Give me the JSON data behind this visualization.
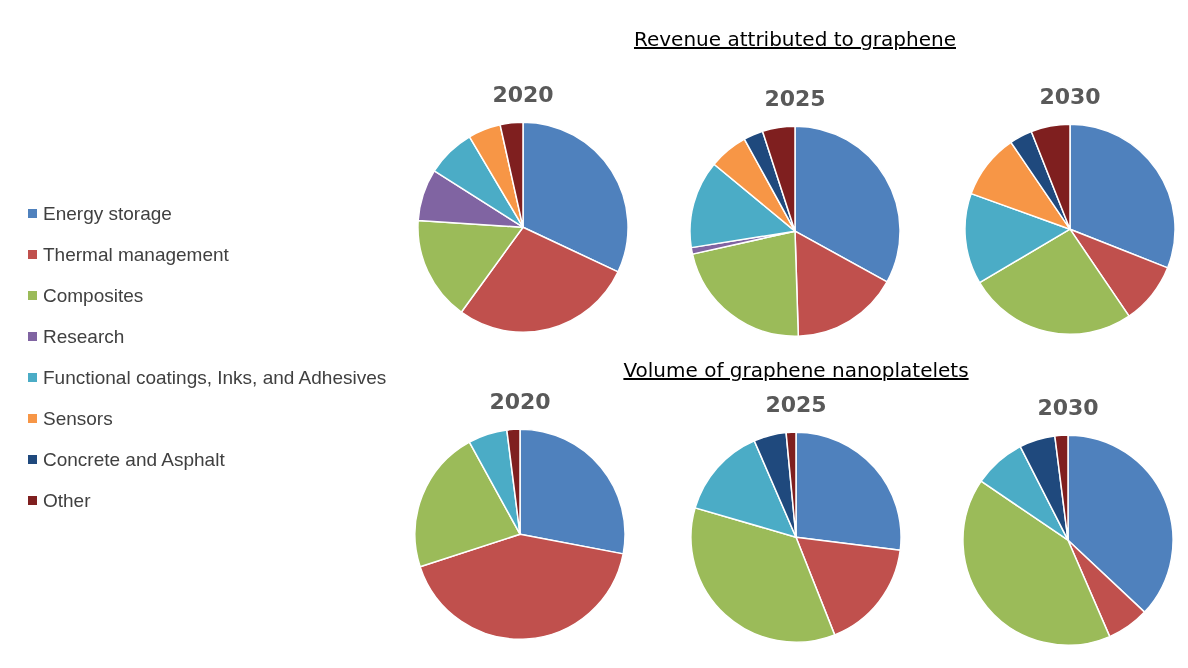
{
  "chart_data": [
    {
      "type": "pie",
      "title": "2020",
      "legend": "left",
      "categories": [
        "Energy storage",
        "Thermal management",
        "Composites",
        "Research",
        "Functional coatings, Inks, and Adhesives",
        "Sensors",
        "Concrete and Asphalt",
        "Other"
      ],
      "values": [
        32,
        28,
        16,
        8,
        7.5,
        5,
        0,
        3.5
      ],
      "colors": [
        "#4f81bd",
        "#c0504d",
        "#9bbb59",
        "#8064a2",
        "#4bacc6",
        "#f79646",
        "#1f497d",
        "#7f1f1f"
      ]
    },
    {
      "type": "pie",
      "title": "2025",
      "annotations": [
        "Revenue attributed to graphene"
      ],
      "categories": [
        null,
        null,
        null,
        null,
        null,
        null,
        null,
        null
      ],
      "values": [
        33,
        16.5,
        22,
        1,
        13.5,
        6,
        3,
        5
      ],
      "colors": [
        "#4f81bd",
        "#c0504d",
        "#9bbb59",
        "#8064a2",
        "#4bacc6",
        "#f79646",
        "#1f497d",
        "#7f1f1f"
      ]
    },
    {
      "type": "pie",
      "title": "2030",
      "categories": [
        null,
        null,
        null,
        null,
        null,
        null,
        null,
        null
      ],
      "values": [
        31,
        9.5,
        26,
        0,
        14,
        10,
        3.5,
        6
      ],
      "colors": [
        "#4f81bd",
        "#c0504d",
        "#9bbb59",
        "#8064a2",
        "#4bacc6",
        "#f79646",
        "#1f497d",
        "#7f1f1f"
      ]
    },
    {
      "type": "pie",
      "title": "2020",
      "categories": [
        null,
        null,
        null,
        null,
        null,
        null,
        null,
        null
      ],
      "values": [
        28,
        42,
        22,
        0,
        6,
        0,
        0,
        2
      ],
      "colors": [
        "#4f81bd",
        "#c0504d",
        "#9bbb59",
        "#8064a2",
        "#4bacc6",
        "#f79646",
        "#1f497d",
        "#7f1f1f"
      ]
    },
    {
      "type": "pie",
      "title": "2025",
      "annotations": [
        "Volume of graphene nanoplatelets"
      ],
      "categories": [
        null,
        null,
        null,
        null,
        null,
        null,
        null,
        null
      ],
      "values": [
        27,
        17,
        35.5,
        0,
        14,
        0,
        5,
        1.5
      ],
      "colors": [
        "#4f81bd",
        "#c0504d",
        "#9bbb59",
        "#8064a2",
        "#4bacc6",
        "#f79646",
        "#1f497d",
        "#7f1f1f"
      ]
    },
    {
      "type": "pie",
      "title": "2030",
      "categories": [
        null,
        null,
        null,
        null,
        null,
        null,
        null,
        null
      ],
      "values": [
        37,
        6.5,
        41,
        0,
        8,
        0,
        5.5,
        2
      ],
      "colors": [
        "#4f81bd",
        "#c0504d",
        "#9bbb59",
        "#8064a2",
        "#4bacc6",
        "#f79646",
        "#1f497d",
        "#7f1f1f"
      ]
    }
  ]
}
